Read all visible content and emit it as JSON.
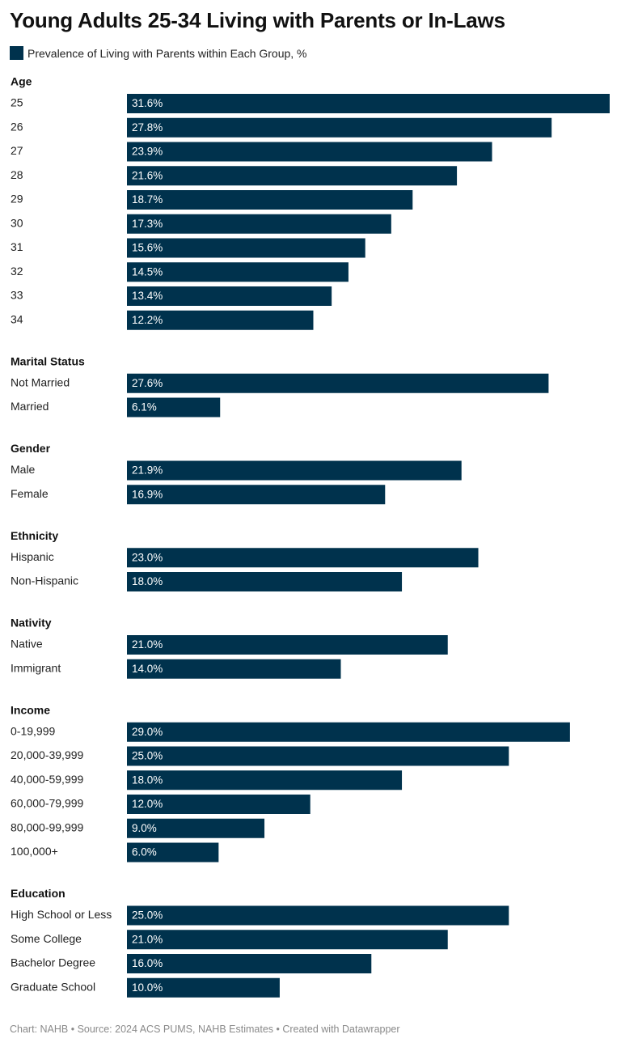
{
  "title": "Young Adults 25-34 Living with Parents or In-Laws",
  "legend_label": "Prevalence of Living with Parents within Each Group, %",
  "footer": "Chart: NAHB  • Source: 2024 ACS PUMS, NAHB Estimates • Created with Datawrapper",
  "colors": {
    "bar": "#00324d",
    "value_label": "#ffffff",
    "category_label": "#222222",
    "group_heading": "#111111"
  },
  "chart_data": {
    "type": "bar",
    "orientation": "horizontal",
    "unit": "%",
    "groups": [
      {
        "name": "Age",
        "items": [
          {
            "label": "25",
            "value": 31.6,
            "value_label": "31.6%"
          },
          {
            "label": "26",
            "value": 27.8,
            "value_label": "27.8%"
          },
          {
            "label": "27",
            "value": 23.9,
            "value_label": "23.9%"
          },
          {
            "label": "28",
            "value": 21.6,
            "value_label": "21.6%"
          },
          {
            "label": "29",
            "value": 18.7,
            "value_label": "18.7%"
          },
          {
            "label": "30",
            "value": 17.3,
            "value_label": "17.3%"
          },
          {
            "label": "31",
            "value": 15.6,
            "value_label": "15.6%"
          },
          {
            "label": "32",
            "value": 14.5,
            "value_label": "14.5%"
          },
          {
            "label": "33",
            "value": 13.4,
            "value_label": "13.4%"
          },
          {
            "label": "34",
            "value": 12.2,
            "value_label": "12.2%"
          }
        ]
      },
      {
        "name": "Marital Status",
        "items": [
          {
            "label": "Not Married",
            "value": 27.6,
            "value_label": "27.6%"
          },
          {
            "label": "Married",
            "value": 6.1,
            "value_label": "6.1%"
          }
        ]
      },
      {
        "name": "Gender",
        "items": [
          {
            "label": "Male",
            "value": 21.9,
            "value_label": "21.9%"
          },
          {
            "label": "Female",
            "value": 16.9,
            "value_label": "16.9%"
          }
        ]
      },
      {
        "name": "Ethnicity",
        "items": [
          {
            "label": "Hispanic",
            "value": 23.0,
            "value_label": "23.0%"
          },
          {
            "label": "Non-Hispanic",
            "value": 18.0,
            "value_label": "18.0%"
          }
        ]
      },
      {
        "name": "Nativity",
        "items": [
          {
            "label": "Native",
            "value": 21.0,
            "value_label": "21.0%"
          },
          {
            "label": "Immigrant",
            "value": 14.0,
            "value_label": "14.0%"
          }
        ]
      },
      {
        "name": "Income",
        "items": [
          {
            "label": "0-19,999",
            "value": 29.0,
            "value_label": "29.0%"
          },
          {
            "label": "20,000-39,999",
            "value": 25.0,
            "value_label": "25.0%"
          },
          {
            "label": "40,000-59,999",
            "value": 18.0,
            "value_label": "18.0%"
          },
          {
            "label": "60,000-79,999",
            "value": 12.0,
            "value_label": "12.0%"
          },
          {
            "label": "80,000-99,999",
            "value": 9.0,
            "value_label": "9.0%"
          },
          {
            "label": "100,000+",
            "value": 6.0,
            "value_label": "6.0%"
          }
        ]
      },
      {
        "name": "Education",
        "items": [
          {
            "label": "High School or Less",
            "value": 25.0,
            "value_label": "25.0%"
          },
          {
            "label": "Some College",
            "value": 21.0,
            "value_label": "21.0%"
          },
          {
            "label": "Bachelor Degree",
            "value": 16.0,
            "value_label": "16.0%"
          },
          {
            "label": "Graduate School",
            "value": 10.0,
            "value_label": "10.0%"
          }
        ]
      }
    ]
  }
}
